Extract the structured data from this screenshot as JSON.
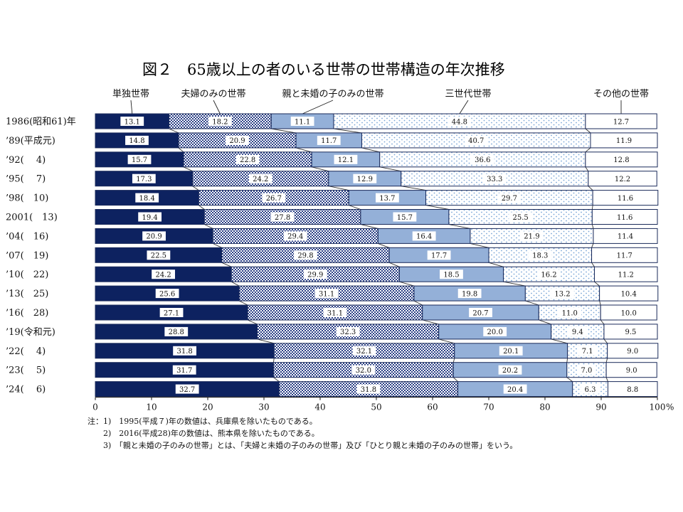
{
  "chart_data": {
    "type": "bar",
    "orientation": "horizontal",
    "stacked": true,
    "title": "図２　65歳以上の者のいる世帯の世帯構造の年次推移",
    "categories": [
      "1986(昭和61)年",
      "’89(平成元)",
      "’92(　 4)",
      "’95(　 7)",
      "’98(　10)",
      "2001(　13)",
      "’04(　16)",
      "’07(　19)",
      "’10(　22)",
      "’13(　25)",
      "’16(　28)",
      "’19(令和元)",
      "’22(　 4)",
      "’23(　 5)",
      "’24(　 6)"
    ],
    "series": [
      {
        "name": "単独世帯",
        "values": [
          13.1,
          14.8,
          15.7,
          17.3,
          18.4,
          19.4,
          20.9,
          22.5,
          24.2,
          25.6,
          27.1,
          28.8,
          31.8,
          31.7,
          32.7
        ]
      },
      {
        "name": "夫婦のみの世帯",
        "values": [
          18.2,
          20.9,
          22.8,
          24.2,
          26.7,
          27.8,
          29.4,
          29.8,
          29.9,
          31.1,
          31.1,
          32.3,
          32.1,
          32.0,
          31.8
        ]
      },
      {
        "name": "親と未婚の子のみの世帯",
        "values": [
          11.1,
          11.7,
          12.1,
          12.9,
          13.7,
          15.7,
          16.4,
          17.7,
          18.5,
          19.8,
          20.7,
          20.0,
          20.1,
          20.2,
          20.4
        ]
      },
      {
        "name": "三世代世帯",
        "values": [
          44.8,
          40.7,
          36.6,
          33.3,
          29.7,
          25.5,
          21.9,
          18.3,
          16.2,
          13.2,
          11.0,
          9.4,
          7.1,
          7.0,
          6.3
        ]
      },
      {
        "name": "その他の世帯",
        "values": [
          12.7,
          11.9,
          12.8,
          12.2,
          11.6,
          11.6,
          11.4,
          11.7,
          11.2,
          10.4,
          10.0,
          9.5,
          9.0,
          9.0,
          8.8
        ]
      }
    ],
    "value_labels": [
      [
        "13.1",
        "14.8",
        "15.7",
        "17.3",
        "18.4",
        "19.4",
        "20.9",
        "22.5",
        "24.2",
        "25.6",
        "27.1",
        "28.8",
        "31.8",
        "31.7",
        "32.7"
      ],
      [
        "18.2",
        "20.9",
        "22.8",
        "24.2",
        "26.7",
        "27.8",
        "29.4",
        "29.8",
        "29.9",
        "31.1",
        "31.1",
        "32.3",
        "32.1",
        "32.0",
        "31.8"
      ],
      [
        "11.1",
        "11.7",
        "12.1",
        "12.9",
        "13.7",
        "15.7",
        "16.4",
        "17.7",
        "18.5",
        "19.8",
        "20.7",
        "20.0",
        "20.1",
        "20.2",
        "20.4"
      ],
      [
        "44.8",
        "40.7",
        "36.6",
        "33.3",
        "29.7",
        "25.5",
        "21.9",
        "18.3",
        "16.2",
        "13.2",
        "11.0",
        "9.4",
        "7.1",
        "7.0",
        "6.3"
      ],
      [
        "12.7",
        "11.9",
        "12.8",
        "12.2",
        "11.6",
        "11.6",
        "11.4",
        "11.7",
        "11.2",
        "10.4",
        "10.0",
        "9.5",
        "9.0",
        "9.0",
        "8.8"
      ]
    ],
    "x_ticks": [
      "0",
      "10",
      "20",
      "30",
      "40",
      "50",
      "60",
      "70",
      "80",
      "90",
      "100"
    ],
    "x_unit": "%",
    "xlim": [
      0,
      100
    ],
    "grid": false,
    "legend_position": "top",
    "colors": {
      "single": "#0d2260",
      "couple": "#2a3f86",
      "parent_child": "#94b0d8",
      "three_gen": "#ffffff",
      "three_gen_dots": "#7aa6d6",
      "other": "#ffffff",
      "outline": "#1a2a5a",
      "connector": "#333333"
    }
  },
  "notes": [
    "注：1)　1995(平成７)年の数値は、兵庫県を除いたものである。",
    "　　2)　2016(平成28)年の数値は、熊本県を除いたものである。",
    "　　3)　「親と未婚の子のみの世帯」とは、「夫婦と未婚の子のみの世帯」及び「ひとり親と未婚の子のみの世帯」をいう。"
  ]
}
